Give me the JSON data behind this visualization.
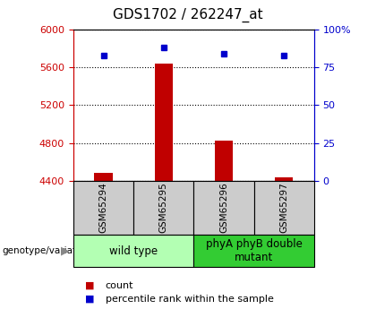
{
  "title": "GDS1702 / 262247_at",
  "samples": [
    "GSM65294",
    "GSM65295",
    "GSM65296",
    "GSM65297"
  ],
  "counts": [
    4480,
    5640,
    4820,
    4440
  ],
  "percentiles": [
    83,
    88,
    84,
    83
  ],
  "bar_baseline": 4400,
  "ylim_left": [
    4400,
    6000
  ],
  "ylim_right": [
    0,
    100
  ],
  "yticks_left": [
    4400,
    4800,
    5200,
    5600,
    6000
  ],
  "yticks_right": [
    0,
    25,
    50,
    75,
    100
  ],
  "bar_color": "#c00000",
  "dot_color": "#0000cc",
  "groups": [
    {
      "label": "wild type",
      "samples": [
        0,
        1
      ],
      "color": "#b3ffb3"
    },
    {
      "label": "phyA phyB double\nmutant",
      "samples": [
        2,
        3
      ],
      "color": "#33cc33"
    }
  ],
  "sample_box_color": "#cccccc",
  "legend_count_color": "#c00000",
  "legend_pct_color": "#0000cc",
  "left_axis_color": "#cc0000",
  "right_axis_color": "#0000cc",
  "title_fontsize": 11,
  "tick_fontsize": 8,
  "sample_fontsize": 7.5,
  "group_fontsize": 8.5,
  "legend_fontsize": 8
}
